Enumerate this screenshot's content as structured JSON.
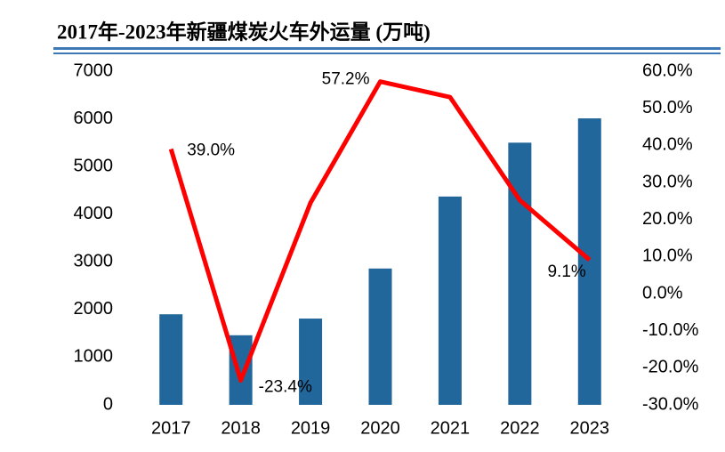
{
  "chart_data": {
    "type": "bar-line",
    "title": "2017年-2023年新疆煤炭火车外运量 (万吨)",
    "categories": [
      "2017",
      "2018",
      "2019",
      "2020",
      "2021",
      "2022",
      "2023"
    ],
    "series": [
      {
        "type": "bar",
        "color": "#22679b",
        "values": [
          1900,
          1460,
          1810,
          2860,
          4370,
          5500,
          6010
        ]
      },
      {
        "type": "line",
        "axis": "y2",
        "color": "#ff0000",
        "values": [
          39.0,
          -23.4,
          24.5,
          57.2,
          53.0,
          25.2,
          9.1
        ],
        "value_labels": [
          "39.0%",
          "-23.4%",
          null,
          "57.2%",
          null,
          null,
          "9.1%"
        ]
      }
    ],
    "ylim": [
      0,
      7000
    ],
    "yticks": [
      0,
      1000,
      2000,
      3000,
      4000,
      5000,
      6000,
      7000
    ],
    "y2lim": [
      -30,
      60
    ],
    "y2ticks": [
      {
        "value": -30,
        "label": "-30.0%"
      },
      {
        "value": -20,
        "label": "-20.0%"
      },
      {
        "value": -10,
        "label": "-10.0%"
      },
      {
        "value": 0,
        "label": "0.0%"
      },
      {
        "value": 10,
        "label": "10.0%"
      },
      {
        "value": 20,
        "label": "20.0%"
      },
      {
        "value": 30,
        "label": "30.0%"
      },
      {
        "value": 40,
        "label": "40.0%"
      },
      {
        "value": 50,
        "label": "50.0%"
      },
      {
        "value": 60,
        "label": "60.0%"
      }
    ]
  }
}
